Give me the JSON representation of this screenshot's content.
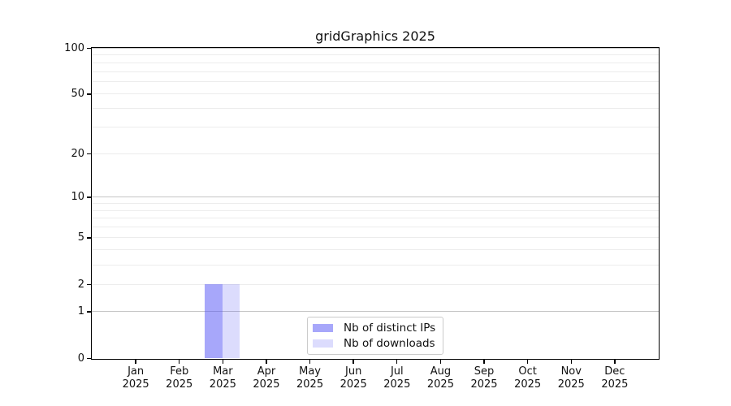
{
  "chart_data": {
    "type": "bar",
    "title": "gridGraphics 2025",
    "categories": [
      "Jan",
      "Feb",
      "Mar",
      "Apr",
      "May",
      "Jun",
      "Jul",
      "Aug",
      "Sep",
      "Oct",
      "Nov",
      "Dec"
    ],
    "year": "2025",
    "series": [
      {
        "name": "Nb of distinct IPs",
        "color": "rgba(80,80,245,0.50)",
        "values": [
          0,
          0,
          2,
          0,
          0,
          0,
          0,
          0,
          0,
          0,
          0,
          0
        ]
      },
      {
        "name": "Nb of downloads",
        "color": "rgba(80,80,245,0.20)",
        "values": [
          0,
          0,
          2,
          0,
          0,
          0,
          0,
          0,
          0,
          0,
          0,
          0
        ]
      }
    ],
    "xlabel": "",
    "ylabel": "",
    "yscale": "log1p",
    "ylim": [
      0,
      100
    ],
    "yticks": [
      0,
      1,
      2,
      5,
      10,
      20,
      50,
      100
    ],
    "grid_minor": [
      2,
      3,
      4,
      5,
      6,
      7,
      8,
      9,
      20,
      30,
      40,
      50,
      60,
      70,
      80,
      90
    ],
    "grid_major": [
      1,
      10,
      100
    ],
    "grid_on": true,
    "legend_position": "inside-bottom-center",
    "colors": {
      "bar_distinct_ips": "#a8a8f8",
      "bar_downloads": "#dcdcf8",
      "grid_minor": "#ececec",
      "grid_major": "#c6c6c6",
      "frame": "#000000",
      "background": "#ffffff"
    }
  }
}
